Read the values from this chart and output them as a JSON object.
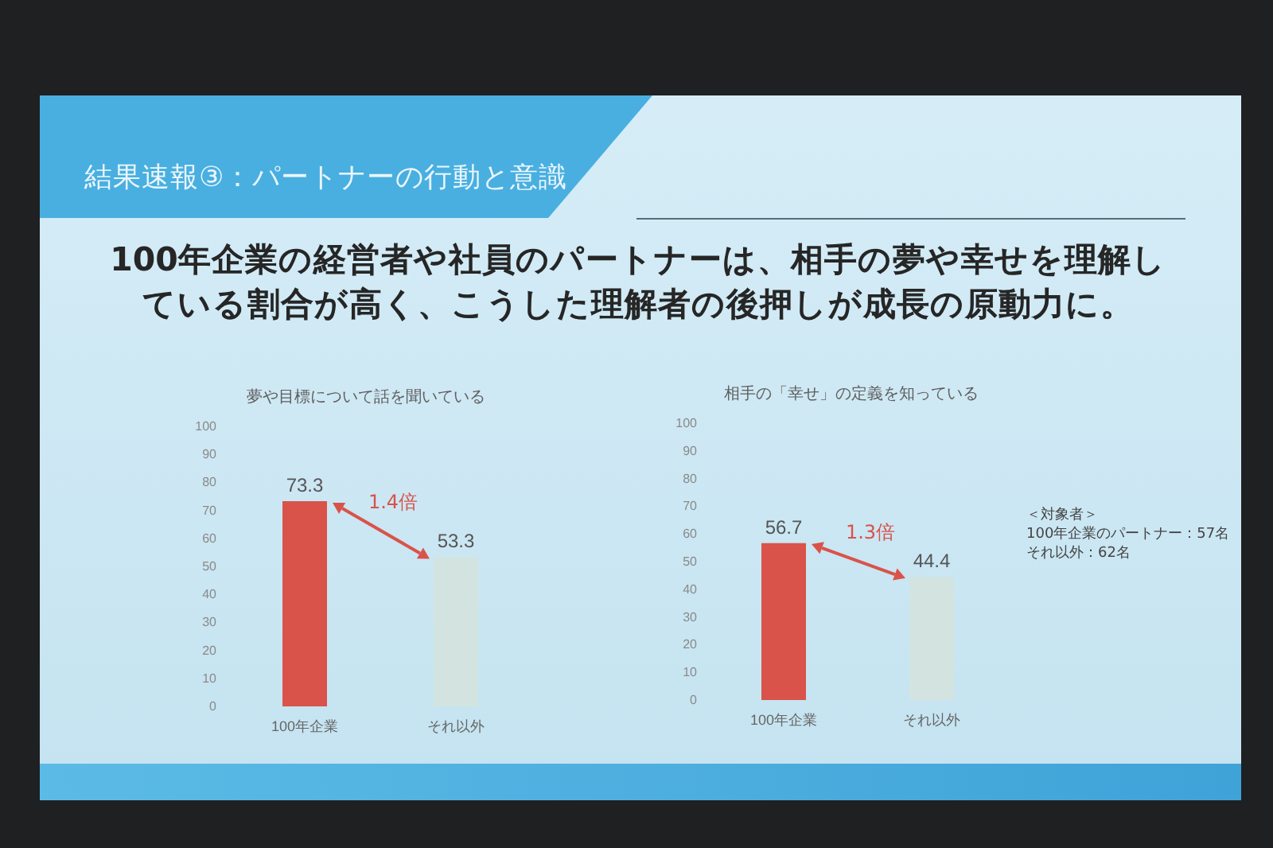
{
  "chart_data": [
    {
      "type": "other",
      "title": "結果速報③：パートナーの行動と意識",
      "subtitle": "100年企業の経営者や社員のパートナーは、相手の夢や幸せを理解している割合が高く、こうした理解者の後押しが成長の原動力に。"
    },
    {
      "type": "bar",
      "title": "夢や目標について話を聞いている",
      "categories": [
        "100年企業",
        "それ以外"
      ],
      "values": [
        73.3,
        53.3
      ],
      "colors": [
        "#d9534a",
        "#d3e4e0"
      ],
      "ylim": [
        0,
        100
      ],
      "yticks": [
        0,
        10,
        20,
        30,
        40,
        50,
        60,
        70,
        80,
        90,
        100
      ],
      "data_labels": true,
      "annotations": [
        "1.4倍"
      ]
    },
    {
      "type": "bar",
      "title": "相手の「幸せ」の定義を知っている",
      "categories": [
        "100年企業",
        "それ以外"
      ],
      "values": [
        56.7,
        44.4
      ],
      "colors": [
        "#d9534a",
        "#d3e4e0"
      ],
      "ylim": [
        0,
        100
      ],
      "yticks": [
        0,
        10,
        20,
        30,
        40,
        50,
        60,
        70,
        80,
        90,
        100
      ],
      "data_labels": true,
      "annotations": [
        "1.3倍",
        "＜対象者＞",
        "100年企業のパートナー：57名",
        "それ以外：62名"
      ]
    }
  ]
}
